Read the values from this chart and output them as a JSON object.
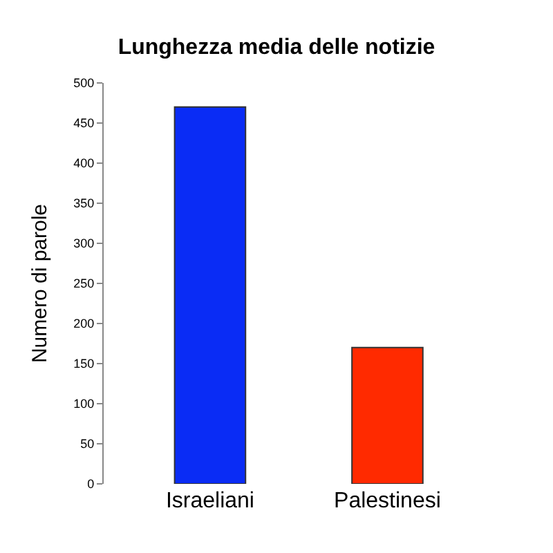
{
  "chart_data": {
    "type": "bar",
    "title": "Lunghezza media delle notizie",
    "ylabel": "Numero di parole",
    "categories": [
      "Israeliani",
      "Palestinesi"
    ],
    "values": [
      470,
      170
    ],
    "colors": [
      "#0a2cf5",
      "#ff2a00"
    ],
    "ylim": [
      0,
      500
    ],
    "yticks": [
      0,
      50,
      100,
      150,
      200,
      250,
      300,
      350,
      400,
      450,
      500
    ]
  }
}
